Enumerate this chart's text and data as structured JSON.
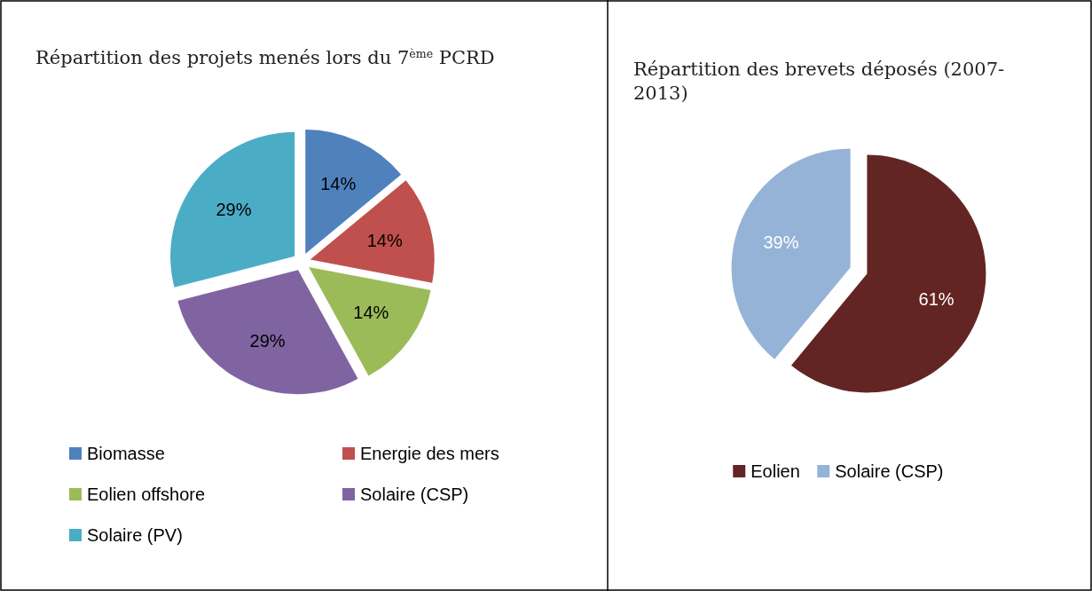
{
  "chart_data": [
    {
      "type": "pie",
      "title": "Répartition des projets menés lors du 7$^{ème}$ PCRD",
      "categories": [
        "Biomasse",
        "Energie des mers",
        "Eolien offshore",
        "Solaire (CSP)",
        "Solaire (PV)"
      ],
      "values": [
        14,
        14,
        14,
        29,
        29
      ],
      "colors": [
        "#4f81bd",
        "#c0504d",
        "#9bbb59",
        "#8064a2",
        "#4bacc6"
      ],
      "value_labels": [
        "14%",
        "14%",
        "14%",
        "29%",
        "29%"
      ],
      "legend": "bottom"
    },
    {
      "type": "pie",
      "title": "Répartition des brevets déposés (2007-2013)",
      "categories": [
        "Eolien",
        "Solaire (CSP)"
      ],
      "values": [
        61,
        39
      ],
      "colors": [
        "#632523",
        "#95b3d7"
      ],
      "value_labels": [
        "61%",
        "39%"
      ],
      "legend": "bottom"
    }
  ]
}
